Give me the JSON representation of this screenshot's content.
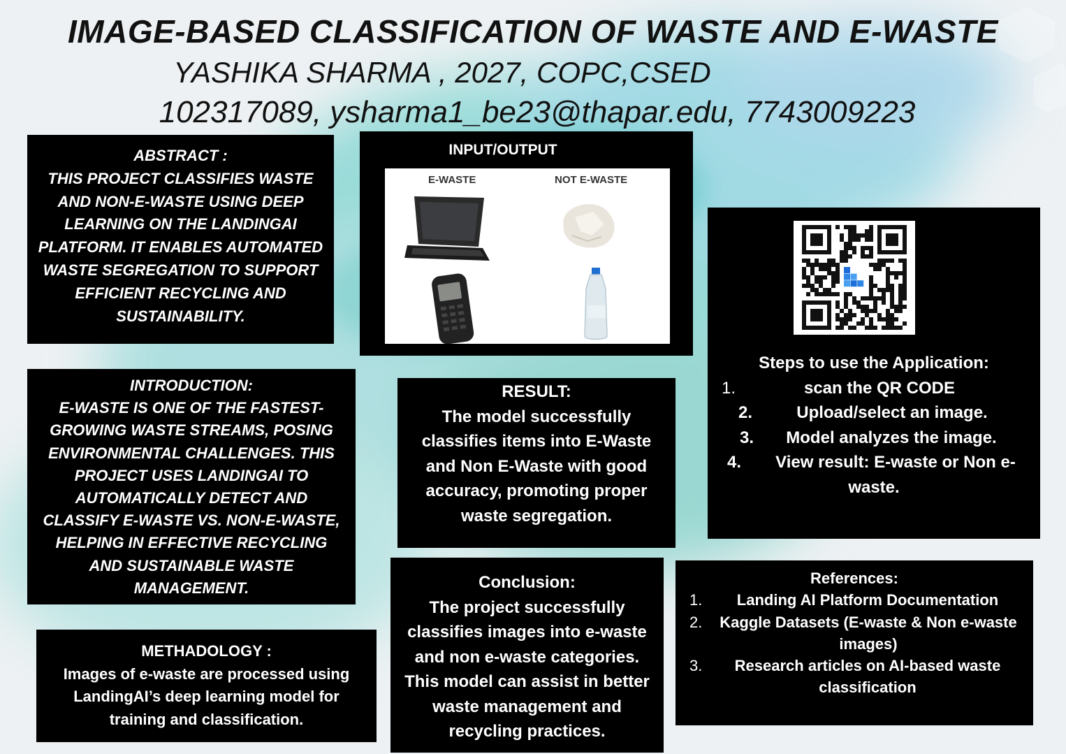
{
  "header": {
    "title": "IMAGE-BASED CLASSIFICATION OF WASTE AND E-WASTE",
    "author_line": "YASHIKA SHARMA , 2027, COPC,CSED",
    "contact_line": "102317089, ysharma1_be23@thapar.edu, 7743009223"
  },
  "abstract": {
    "lines": [
      "ABSTRACT :",
      "THIS PROJECT CLASSIFIES WASTE",
      "AND NON-E-WASTE USING DEEP",
      "LEARNING ON THE LANDINGAI",
      "PLATFORM. IT ENABLES AUTOMATED",
      "WASTE SEGREGATION TO SUPPORT",
      "EFFICIENT RECYCLING AND",
      "SUSTAINABILITY."
    ]
  },
  "introduction": {
    "lines": [
      "INTRODUCTION:",
      "E-WASTE IS ONE OF THE FASTEST-",
      "GROWING WASTE STREAMS, POSING",
      "ENVIRONMENTAL CHALLENGES. THIS",
      "PROJECT USES LANDINGAI TO",
      "AUTOMATICALLY DETECT AND",
      "CLASSIFY E-WASTE VS. NON-E-WASTE,",
      "HELPING IN EFFECTIVE RECYCLING",
      "AND SUSTAINABLE WASTE",
      "MANAGEMENT."
    ]
  },
  "methodology": {
    "lines": [
      "METHADOLOGY :",
      "Images of e-waste are processed using",
      "LandingAI’s deep learning model for",
      "training and classification."
    ]
  },
  "input_output": {
    "title": "INPUT/OUTPUT",
    "label_ewaste": "E-WASTE",
    "label_not_ewaste": "NOT E-WASTE"
  },
  "result": {
    "lines": [
      "RESULT:",
      "The model successfully",
      "classifies items into E-Waste",
      "and Non E-Waste with good",
      "accuracy, promoting proper",
      "waste segregation."
    ]
  },
  "conclusion": {
    "lines": [
      "Conclusion:",
      "The project successfully",
      "classifies images into e-waste",
      "and non e-waste categories.",
      "This model can assist in better",
      "waste management and",
      "recycling practices."
    ]
  },
  "steps": {
    "heading": "Steps to use the Application:",
    "items": [
      {
        "num": "1.",
        "text": "scan the QR CODE"
      },
      {
        "num": "2.",
        "text": "Upload/select an image."
      },
      {
        "num": "3.",
        "text": "Model analyzes the image."
      },
      {
        "num": "4.",
        "text": "View result: E-waste or Non e-"
      }
    ],
    "item4_cont": "waste."
  },
  "references": {
    "heading": "References:",
    "items": [
      {
        "num": "1.",
        "lines": [
          "Landing AI Platform Documentation"
        ]
      },
      {
        "num": "2.",
        "lines": [
          "Kaggle Datasets (E-waste & Non e-waste",
          "images)"
        ]
      },
      {
        "num": "3.",
        "lines": [
          "Research articles on AI-based waste",
          "classification"
        ]
      }
    ]
  },
  "colors": {
    "panel": "#000000",
    "panel_text": "#ffffff",
    "watercolor": "#7fd6d2"
  }
}
